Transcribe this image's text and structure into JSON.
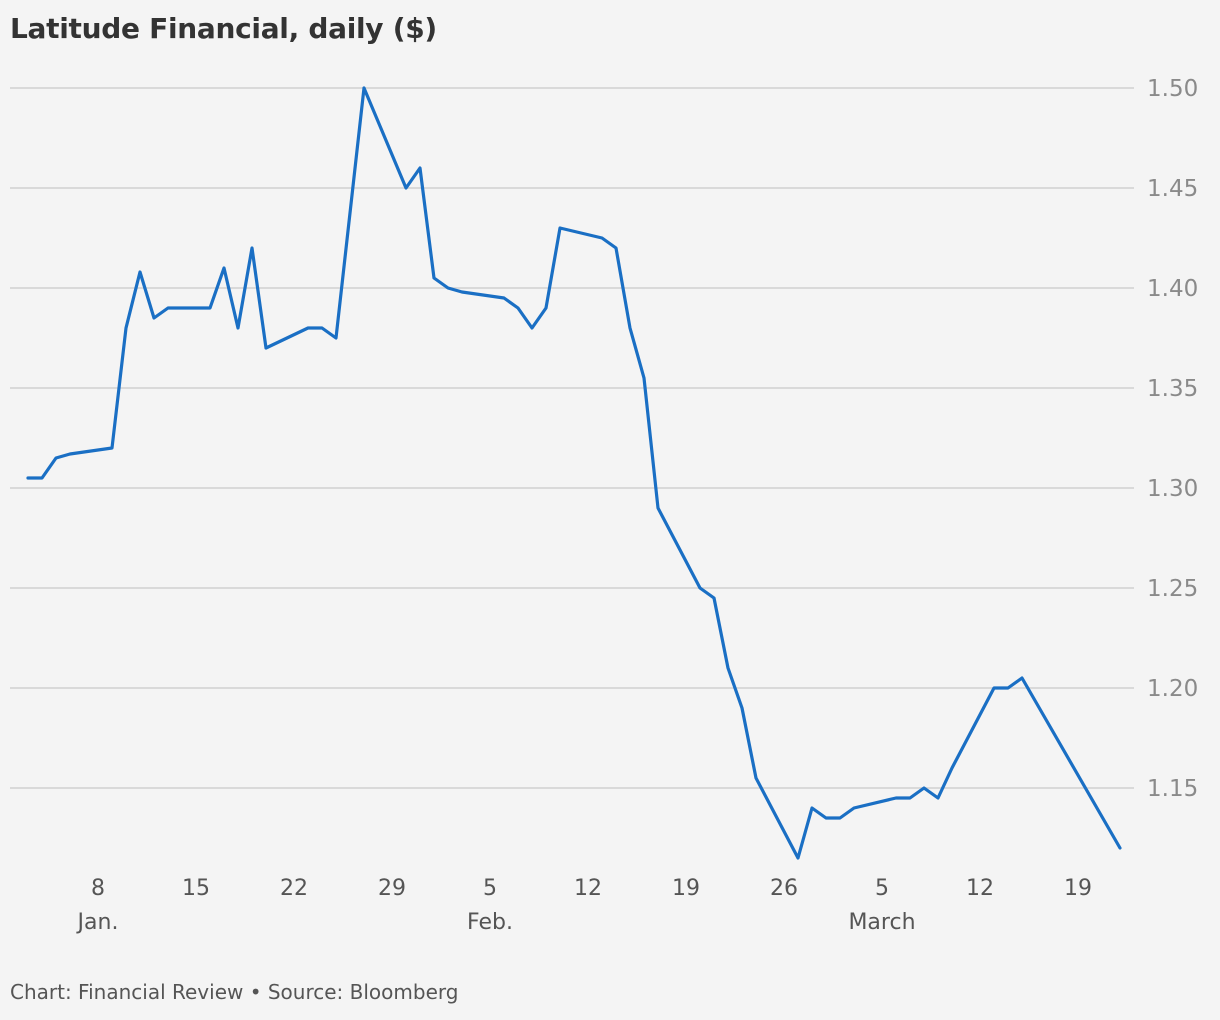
{
  "chart_data": {
    "type": "line",
    "title": "Latitude Financial, daily ($)",
    "footer": "Chart: Financial Review • Source: Bloomberg",
    "x_ticks": [
      "8",
      "15",
      "22",
      "29",
      "5",
      "12",
      "19",
      "26",
      "5",
      "12",
      "19"
    ],
    "month_labels": [
      "Jan.",
      "Feb.",
      "March"
    ],
    "y_ticks": [
      "1.50",
      "1.45",
      "1.40",
      "1.35",
      "1.30",
      "1.25",
      "1.20",
      "1.15"
    ],
    "ylim": [
      1.1,
      1.5
    ],
    "grid": true,
    "line_color": "#1a6fc4",
    "series": [
      {
        "x": [
          "2023-01-03",
          "2023-01-04",
          "2023-01-05",
          "2023-01-06",
          "2023-01-09",
          "2023-01-10",
          "2023-01-11",
          "2023-01-12",
          "2023-01-13",
          "2023-01-16",
          "2023-01-17",
          "2023-01-18",
          "2023-01-19",
          "2023-01-20",
          "2023-01-23",
          "2023-01-24",
          "2023-01-25",
          "2023-01-27",
          "2023-01-30",
          "2023-01-31",
          "2023-02-01",
          "2023-02-02",
          "2023-02-03",
          "2023-02-06",
          "2023-02-07",
          "2023-02-08",
          "2023-02-09",
          "2023-02-10",
          "2023-02-13",
          "2023-02-14",
          "2023-02-15",
          "2023-02-16",
          "2023-02-17",
          "2023-02-20",
          "2023-02-21",
          "2023-02-22",
          "2023-02-23",
          "2023-02-24",
          "2023-02-27",
          "2023-02-28",
          "2023-03-01",
          "2023-03-02",
          "2023-03-03",
          "2023-03-06",
          "2023-03-07",
          "2023-03-08",
          "2023-03-09",
          "2023-03-10",
          "2023-03-13",
          "2023-03-14",
          "2023-03-15",
          "2023-03-22"
        ],
        "values": [
          1.305,
          1.305,
          1.315,
          1.317,
          1.32,
          1.38,
          1.408,
          1.385,
          1.39,
          1.39,
          1.41,
          1.38,
          1.42,
          1.37,
          1.38,
          1.38,
          1.375,
          1.5,
          1.45,
          1.46,
          1.405,
          1.4,
          1.398,
          1.395,
          1.39,
          1.38,
          1.39,
          1.43,
          1.425,
          1.42,
          1.38,
          1.355,
          1.29,
          1.25,
          1.245,
          1.21,
          1.19,
          1.155,
          1.115,
          1.14,
          1.135,
          1.135,
          1.14,
          1.145,
          1.145,
          1.15,
          1.145,
          1.16,
          1.2,
          1.2,
          1.205,
          1.12
        ]
      }
    ]
  }
}
